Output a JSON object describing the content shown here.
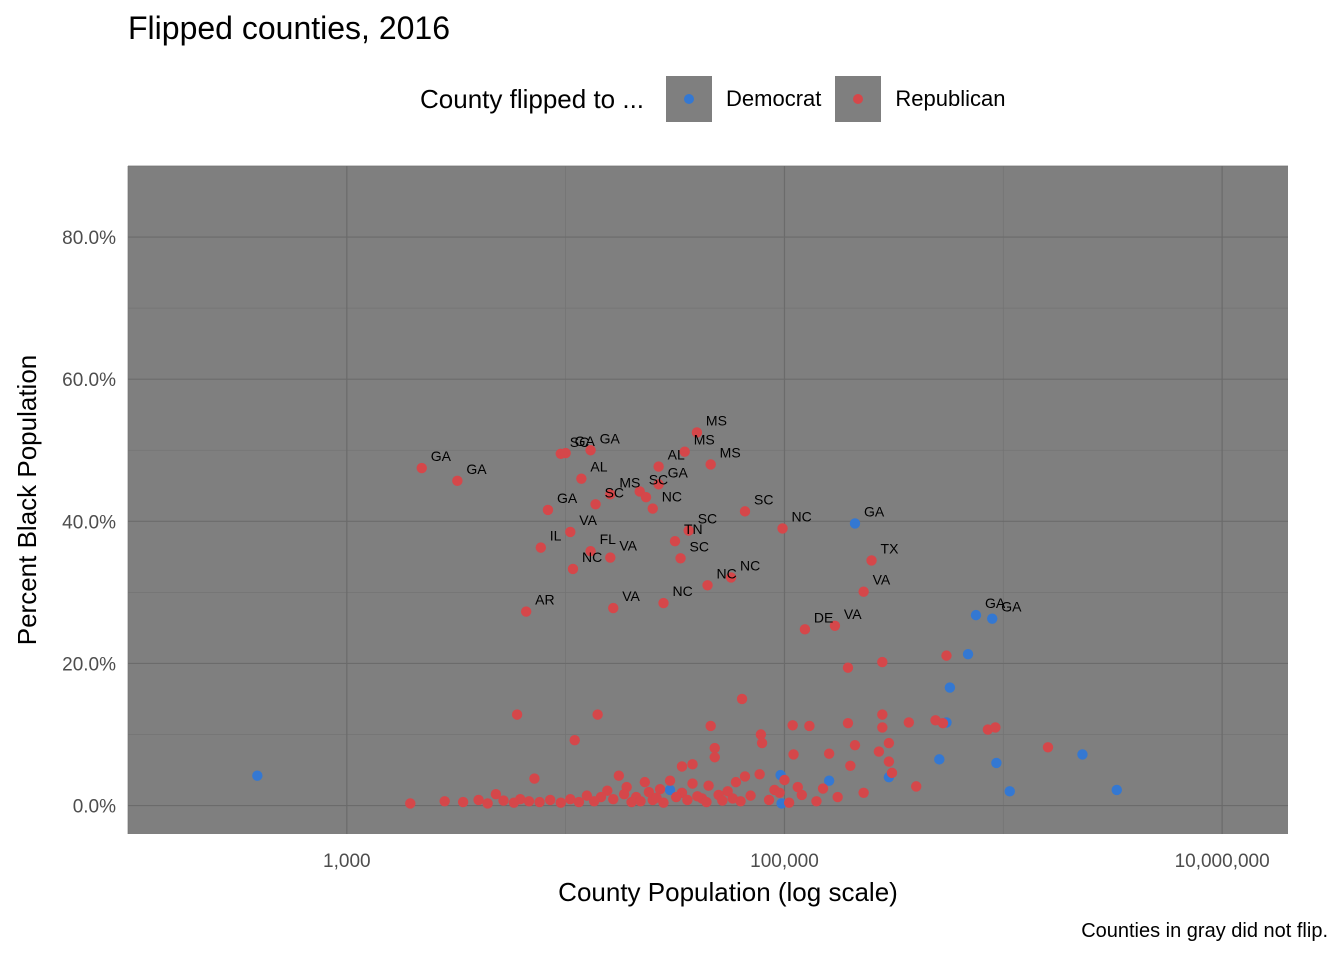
{
  "chart_data": {
    "type": "scatter",
    "title": "Flipped counties, 2016",
    "xlabel": "County Population (log scale)",
    "ylabel": "Percent Black Population",
    "x_scale": "log10",
    "xlim": [
      100,
      20000000
    ],
    "ylim": [
      -4,
      90
    ],
    "x_ticks": [
      1000,
      100000,
      10000000
    ],
    "x_tick_labels": [
      "1,000",
      "100,000",
      "10,000,000"
    ],
    "y_ticks": [
      0,
      20,
      40,
      60,
      80
    ],
    "y_tick_labels": [
      "0.0%",
      "20.0%",
      "40.0%",
      "60.0%",
      "80.0%"
    ],
    "grid": true,
    "legend": {
      "title": "County flipped to ...",
      "position": "top",
      "entries": [
        {
          "name": "Democrat",
          "color": "#3478d2"
        },
        {
          "name": "Republican",
          "color": "#d5474a"
        }
      ]
    },
    "caption": "Counties in gray did not flip.",
    "background_color": "#7f7f7f",
    "series": [
      {
        "name": "Democrat",
        "color": "#3478d2",
        "points": [
          {
            "x": 390,
            "y": 4.2
          },
          {
            "x": 21000,
            "y": 1.0
          },
          {
            "x": 30000,
            "y": 2.2
          },
          {
            "x": 34000,
            "y": 1.8
          },
          {
            "x": 96000,
            "y": 4.3
          },
          {
            "x": 97000,
            "y": 0.3
          },
          {
            "x": 160000,
            "y": 3.5
          },
          {
            "x": 210000,
            "y": 39.7,
            "label": "GA"
          },
          {
            "x": 300000,
            "y": 4.0
          },
          {
            "x": 510000,
            "y": 6.5
          },
          {
            "x": 550000,
            "y": 11.7
          },
          {
            "x": 570000,
            "y": 16.6
          },
          {
            "x": 690000,
            "y": 21.3
          },
          {
            "x": 750000,
            "y": 26.8,
            "label": "GA"
          },
          {
            "x": 890000,
            "y": 26.3,
            "label": "GA"
          },
          {
            "x": 930000,
            "y": 6.0
          },
          {
            "x": 1070000,
            "y": 2.0
          },
          {
            "x": 2300000,
            "y": 7.2
          },
          {
            "x": 3300000,
            "y": 2.2
          }
        ]
      },
      {
        "name": "Republican",
        "color": "#d5474a",
        "points": [
          {
            "x": 2200,
            "y": 47.5,
            "label": "GA"
          },
          {
            "x": 3200,
            "y": 45.7,
            "label": "GA"
          },
          {
            "x": 9500,
            "y": 49.5,
            "label": "SC"
          },
          {
            "x": 10000,
            "y": 49.6,
            "label": "GA"
          },
          {
            "x": 13000,
            "y": 50.0,
            "label": "GA"
          },
          {
            "x": 11800,
            "y": 46.0,
            "label": "AL"
          },
          {
            "x": 8300,
            "y": 41.6,
            "label": "GA"
          },
          {
            "x": 10500,
            "y": 38.5,
            "label": "VA"
          },
          {
            "x": 7700,
            "y": 36.3,
            "label": "IL"
          },
          {
            "x": 13000,
            "y": 35.8,
            "label": "FL"
          },
          {
            "x": 10800,
            "y": 33.3,
            "label": "NC"
          },
          {
            "x": 6600,
            "y": 27.3,
            "label": "AR"
          },
          {
            "x": 13700,
            "y": 42.4,
            "label": "SC"
          },
          {
            "x": 16000,
            "y": 43.8,
            "label": "MS"
          },
          {
            "x": 21800,
            "y": 44.2,
            "label": "SC"
          },
          {
            "x": 23300,
            "y": 43.4
          },
          {
            "x": 25000,
            "y": 41.8,
            "label": "NC"
          },
          {
            "x": 26600,
            "y": 47.7,
            "label": "AL"
          },
          {
            "x": 26600,
            "y": 45.2,
            "label": "GA"
          },
          {
            "x": 35000,
            "y": 49.8,
            "label": "MS"
          },
          {
            "x": 39800,
            "y": 52.5,
            "label": "MS"
          },
          {
            "x": 46000,
            "y": 48.0,
            "label": "MS"
          },
          {
            "x": 31600,
            "y": 37.2,
            "label": "TN"
          },
          {
            "x": 36500,
            "y": 38.7,
            "label": "SC"
          },
          {
            "x": 33500,
            "y": 34.8,
            "label": "SC"
          },
          {
            "x": 16000,
            "y": 34.9,
            "label": "VA"
          },
          {
            "x": 44500,
            "y": 31.0,
            "label": "NC"
          },
          {
            "x": 57000,
            "y": 32.1,
            "label": "NC"
          },
          {
            "x": 28000,
            "y": 28.5,
            "label": "NC"
          },
          {
            "x": 16500,
            "y": 27.8,
            "label": "VA"
          },
          {
            "x": 66000,
            "y": 41.4,
            "label": "SC"
          },
          {
            "x": 98000,
            "y": 39.0,
            "label": "NC"
          },
          {
            "x": 250000,
            "y": 34.5,
            "label": "TX"
          },
          {
            "x": 230000,
            "y": 30.1,
            "label": "VA"
          },
          {
            "x": 170000,
            "y": 25.3,
            "label": "VA"
          },
          {
            "x": 124000,
            "y": 24.8,
            "label": "DE"
          },
          {
            "x": 195000,
            "y": 19.4
          },
          {
            "x": 280000,
            "y": 20.2
          },
          {
            "x": 550000,
            "y": 21.1
          },
          {
            "x": 6000,
            "y": 12.8
          },
          {
            "x": 14000,
            "y": 12.8
          },
          {
            "x": 11000,
            "y": 9.2
          },
          {
            "x": 64000,
            "y": 15.0
          },
          {
            "x": 78000,
            "y": 10.0
          },
          {
            "x": 79000,
            "y": 8.8
          },
          {
            "x": 109000,
            "y": 11.3
          },
          {
            "x": 130000,
            "y": 11.2
          },
          {
            "x": 195000,
            "y": 11.6
          },
          {
            "x": 280000,
            "y": 12.8
          },
          {
            "x": 280000,
            "y": 11.0
          },
          {
            "x": 370000,
            "y": 11.7
          },
          {
            "x": 490000,
            "y": 12.0
          },
          {
            "x": 530000,
            "y": 11.6
          },
          {
            "x": 850000,
            "y": 10.7
          },
          {
            "x": 920000,
            "y": 11.0
          },
          {
            "x": 1600000,
            "y": 8.2
          },
          {
            "x": 46000,
            "y": 11.2
          },
          {
            "x": 48000,
            "y": 8.1
          },
          {
            "x": 48000,
            "y": 6.8
          },
          {
            "x": 38000,
            "y": 5.8
          },
          {
            "x": 34000,
            "y": 5.5
          },
          {
            "x": 110000,
            "y": 7.2
          },
          {
            "x": 160000,
            "y": 7.3
          },
          {
            "x": 210000,
            "y": 8.5
          },
          {
            "x": 270000,
            "y": 7.6
          },
          {
            "x": 300000,
            "y": 8.8
          },
          {
            "x": 300000,
            "y": 6.2
          },
          {
            "x": 310000,
            "y": 4.6
          },
          {
            "x": 200000,
            "y": 5.6
          },
          {
            "x": 400000,
            "y": 2.7
          },
          {
            "x": 230000,
            "y": 1.8
          },
          {
            "x": 150000,
            "y": 2.4
          },
          {
            "x": 120000,
            "y": 1.5
          },
          {
            "x": 100000,
            "y": 3.6
          },
          {
            "x": 90000,
            "y": 2.2
          },
          {
            "x": 77000,
            "y": 4.4
          },
          {
            "x": 66000,
            "y": 4.1
          },
          {
            "x": 60000,
            "y": 3.3
          },
          {
            "x": 55000,
            "y": 2.0
          },
          {
            "x": 50000,
            "y": 1.5
          },
          {
            "x": 45000,
            "y": 2.8
          },
          {
            "x": 42000,
            "y": 1.0
          },
          {
            "x": 38000,
            "y": 3.1
          },
          {
            "x": 34000,
            "y": 1.8
          },
          {
            "x": 30000,
            "y": 3.5
          },
          {
            "x": 27000,
            "y": 2.3
          },
          {
            "x": 25000,
            "y": 0.8
          },
          {
            "x": 23000,
            "y": 3.3
          },
          {
            "x": 21000,
            "y": 1.2
          },
          {
            "x": 19000,
            "y": 2.6
          },
          {
            "x": 17500,
            "y": 4.2
          },
          {
            "x": 16500,
            "y": 0.9
          },
          {
            "x": 15500,
            "y": 2.1
          },
          {
            "x": 14500,
            "y": 1.2
          },
          {
            "x": 13500,
            "y": 0.6
          },
          {
            "x": 12500,
            "y": 1.4
          },
          {
            "x": 11500,
            "y": 0.5
          },
          {
            "x": 10500,
            "y": 0.9
          },
          {
            "x": 9500,
            "y": 0.4
          },
          {
            "x": 8500,
            "y": 0.8
          },
          {
            "x": 7600,
            "y": 0.5
          },
          {
            "x": 7200,
            "y": 3.8
          },
          {
            "x": 6800,
            "y": 0.6
          },
          {
            "x": 6200,
            "y": 0.9
          },
          {
            "x": 5800,
            "y": 0.4
          },
          {
            "x": 5200,
            "y": 0.7
          },
          {
            "x": 4800,
            "y": 1.6
          },
          {
            "x": 4400,
            "y": 0.3
          },
          {
            "x": 4000,
            "y": 0.8
          },
          {
            "x": 3400,
            "y": 0.5
          },
          {
            "x": 2800,
            "y": 0.6
          },
          {
            "x": 1950,
            "y": 0.3
          },
          {
            "x": 18500,
            "y": 1.6
          },
          {
            "x": 20000,
            "y": 0.5
          },
          {
            "x": 22000,
            "y": 0.6
          },
          {
            "x": 24000,
            "y": 1.9
          },
          {
            "x": 26000,
            "y": 1.1
          },
          {
            "x": 28000,
            "y": 0.4
          },
          {
            "x": 32000,
            "y": 1.2
          },
          {
            "x": 36000,
            "y": 0.8
          },
          {
            "x": 40000,
            "y": 1.3
          },
          {
            "x": 44000,
            "y": 0.5
          },
          {
            "x": 52000,
            "y": 0.7
          },
          {
            "x": 58000,
            "y": 1.0
          },
          {
            "x": 63000,
            "y": 0.6
          },
          {
            "x": 70000,
            "y": 1.4
          },
          {
            "x": 85000,
            "y": 0.8
          },
          {
            "x": 95000,
            "y": 1.8
          },
          {
            "x": 105000,
            "y": 0.4
          },
          {
            "x": 115000,
            "y": 2.6
          },
          {
            "x": 140000,
            "y": 0.6
          },
          {
            "x": 175000,
            "y": 1.2
          }
        ]
      }
    ]
  }
}
